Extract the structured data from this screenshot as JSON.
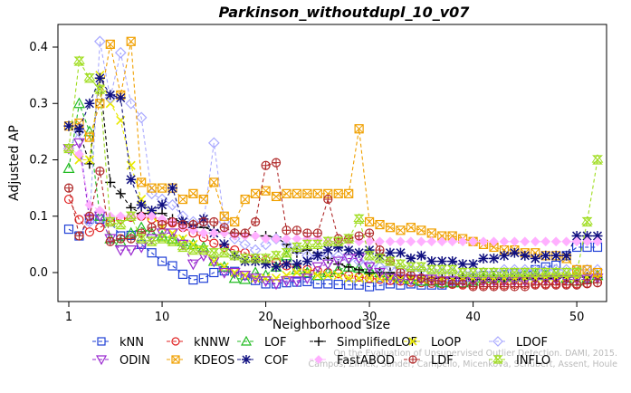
{
  "chart_data": {
    "type": "line",
    "title": "Parkinson_withoutdupl_10_v07",
    "xlabel": "Neighborhood size",
    "ylabel": "Adjusted AP",
    "xlim": [
      1,
      52
    ],
    "ylim": [
      -0.03,
      0.44
    ],
    "xticks": [
      1,
      10,
      20,
      30,
      40,
      50
    ],
    "yticks": [
      0.0,
      0.1,
      0.2,
      0.3,
      0.4
    ],
    "yticklabels": [
      "0.0",
      "0.1",
      "0.2",
      "0.3",
      "0.4"
    ],
    "grid": false,
    "legend_position": "bottom",
    "watermark": "Campos, Zimek, Sander, Campello, Micenkova, Schubert, Assent, Houle\nOn the Evaluation of Unsupervised Outlier Detection. DAMI, 2015.",
    "x": [
      1,
      2,
      3,
      4,
      5,
      6,
      7,
      8,
      9,
      10,
      11,
      12,
      13,
      14,
      15,
      16,
      17,
      18,
      19,
      20,
      21,
      22,
      23,
      24,
      25,
      26,
      27,
      28,
      29,
      30,
      31,
      32,
      33,
      34,
      35,
      36,
      37,
      38,
      39,
      40,
      41,
      42,
      43,
      44,
      45,
      46,
      47,
      48,
      49,
      50,
      51,
      52
    ],
    "series": [
      {
        "name": "kNN",
        "color": "#1f3fd6",
        "marker": "square",
        "values": [
          0.077,
          0.065,
          0.095,
          0.095,
          0.09,
          0.065,
          0.066,
          0.05,
          0.035,
          0.02,
          0.012,
          -0.003,
          -0.013,
          -0.01,
          0.0,
          0.003,
          0.002,
          -0.005,
          -0.014,
          -0.02,
          -0.02,
          -0.018,
          -0.017,
          -0.016,
          -0.02,
          -0.02,
          -0.021,
          -0.022,
          -0.022,
          -0.025,
          -0.023,
          -0.02,
          -0.022,
          -0.02,
          -0.022,
          -0.022,
          -0.022,
          -0.015,
          -0.013,
          -0.01,
          -0.005,
          -0.005,
          -0.004,
          -0.002,
          0.0,
          0.005,
          0.01,
          0.013,
          0.03,
          0.045,
          0.045,
          0.045
        ]
      },
      {
        "name": "kNNW",
        "color": "#e02020",
        "marker": "circle",
        "values": [
          0.13,
          0.094,
          0.072,
          0.08,
          0.09,
          0.095,
          0.098,
          0.1,
          0.095,
          0.09,
          0.088,
          0.08,
          0.07,
          0.062,
          0.052,
          0.045,
          0.04,
          0.035,
          0.025,
          0.022,
          0.018,
          0.012,
          0.008,
          0.005,
          0.003,
          0.0,
          -0.002,
          -0.005,
          -0.008,
          -0.01,
          -0.012,
          -0.014,
          -0.015,
          -0.017,
          -0.018,
          -0.019,
          -0.02,
          -0.021,
          -0.022,
          -0.022,
          -0.022,
          -0.022,
          -0.022,
          -0.021,
          -0.021,
          -0.02,
          -0.02,
          -0.02,
          -0.02,
          -0.02,
          -0.019,
          -0.018
        ]
      },
      {
        "name": "LOF",
        "color": "#22bb22",
        "marker": "triangle-up",
        "values": [
          0.185,
          0.3,
          0.25,
          0.1,
          0.06,
          0.055,
          0.07,
          0.08,
          0.07,
          0.065,
          0.06,
          0.055,
          0.05,
          0.045,
          0.02,
          0.01,
          -0.01,
          -0.012,
          0.0,
          -0.005,
          0.01,
          0.03,
          0.005,
          0.0,
          -0.005,
          0.0,
          0.005,
          0.01,
          0.008,
          0.005,
          0.0,
          -0.005,
          -0.01,
          -0.012,
          -0.015,
          -0.015,
          -0.018,
          -0.018,
          -0.018,
          -0.015,
          -0.01,
          -0.01,
          -0.008,
          -0.008,
          -0.005,
          -0.005,
          -0.005,
          0.0,
          -0.01,
          -0.015,
          -0.01,
          -0.005
        ]
      },
      {
        "name": "SimplifiedLOF",
        "color": "#000000",
        "marker": "plus",
        "values": [
          0.26,
          0.25,
          0.193,
          0.345,
          0.16,
          0.14,
          0.115,
          0.105,
          0.105,
          0.105,
          0.095,
          0.09,
          0.085,
          0.08,
          0.075,
          0.07,
          0.07,
          0.068,
          0.065,
          0.065,
          0.063,
          0.05,
          0.035,
          0.04,
          0.035,
          0.025,
          0.015,
          0.01,
          0.005,
          0.0,
          0.0,
          0.0,
          -0.005,
          -0.005,
          -0.005,
          -0.01,
          -0.01,
          -0.01,
          -0.01,
          -0.012,
          -0.012,
          -0.012,
          -0.012,
          -0.012,
          -0.01,
          -0.01,
          -0.01,
          -0.01,
          -0.008,
          -0.008,
          -0.008,
          -0.008
        ]
      },
      {
        "name": "LoOP",
        "color": "#e8e800",
        "marker": "x",
        "values": [
          0.22,
          0.2,
          0.2,
          0.35,
          0.3,
          0.27,
          0.19,
          0.13,
          0.1,
          0.08,
          0.07,
          0.06,
          0.05,
          0.04,
          0.02,
          0.01,
          0.0,
          -0.005,
          -0.01,
          -0.01,
          -0.01,
          -0.005,
          0.0,
          0.0,
          -0.005,
          -0.005,
          -0.005,
          -0.01,
          -0.01,
          -0.01,
          -0.01,
          -0.01,
          -0.012,
          -0.012,
          -0.012,
          -0.012,
          -0.012,
          -0.012,
          -0.012,
          -0.01,
          -0.01,
          -0.01,
          -0.01,
          -0.01,
          -0.01,
          -0.01,
          -0.008,
          -0.008,
          -0.008,
          -0.008,
          -0.008,
          -0.008
        ]
      },
      {
        "name": "LDOF",
        "color": "#aaaaff",
        "marker": "diamond",
        "values": [
          0.22,
          0.25,
          0.09,
          0.41,
          0.31,
          0.39,
          0.3,
          0.275,
          0.14,
          0.13,
          0.12,
          0.1,
          0.09,
          0.09,
          0.23,
          0.09,
          0.06,
          0.05,
          0.04,
          0.05,
          0.06,
          0.05,
          0.04,
          0.03,
          0.03,
          0.03,
          0.03,
          0.025,
          0.02,
          0.015,
          0.01,
          0.01,
          0.005,
          0.005,
          0.005,
          0.005,
          0.0,
          0.0,
          0.0,
          0.0,
          0.0,
          0.0,
          0.005,
          0.005,
          0.005,
          0.005,
          0.005,
          0.005,
          0.005,
          0.005,
          0.005,
          0.005
        ]
      },
      {
        "name": "ODIN",
        "color": "#9a2ad0",
        "marker": "triangle-down",
        "values": [
          0.22,
          0.23,
          0.095,
          0.1,
          0.06,
          0.04,
          0.04,
          0.045,
          0.06,
          0.07,
          0.07,
          0.05,
          0.015,
          0.03,
          0.02,
          0.0,
          0.0,
          -0.005,
          -0.01,
          -0.015,
          -0.02,
          -0.015,
          -0.015,
          -0.01,
          0.01,
          0.015,
          0.02,
          0.025,
          0.025,
          0.01,
          0.0,
          -0.01,
          -0.012,
          -0.012,
          -0.012,
          -0.012,
          -0.015,
          -0.015,
          -0.015,
          -0.015,
          -0.015,
          -0.015,
          -0.015,
          -0.015,
          -0.015,
          -0.012,
          -0.012,
          -0.012,
          -0.012,
          -0.012,
          -0.012,
          -0.01
        ]
      },
      {
        "name": "KDEOS",
        "color": "#f0a000",
        "marker": "square-x",
        "values": [
          0.26,
          0.265,
          0.24,
          0.3,
          0.405,
          0.315,
          0.41,
          0.16,
          0.15,
          0.15,
          0.15,
          0.13,
          0.14,
          0.13,
          0.16,
          0.1,
          0.09,
          0.13,
          0.14,
          0.145,
          0.135,
          0.14,
          0.14,
          0.14,
          0.14,
          0.14,
          0.14,
          0.14,
          0.255,
          0.09,
          0.085,
          0.08,
          0.075,
          0.08,
          0.075,
          0.07,
          0.065,
          0.065,
          0.06,
          0.055,
          0.05,
          0.045,
          0.04,
          0.04,
          0.035,
          0.035,
          0.03,
          0.03,
          0.025,
          0.005,
          0.005,
          0.0
        ]
      },
      {
        "name": "COF",
        "color": "#101080",
        "marker": "star",
        "values": [
          0.26,
          0.255,
          0.3,
          0.345,
          0.315,
          0.31,
          0.165,
          0.12,
          0.11,
          0.12,
          0.15,
          0.09,
          0.08,
          0.095,
          0.07,
          0.05,
          0.03,
          0.02,
          0.02,
          0.015,
          0.01,
          0.015,
          0.015,
          0.02,
          0.03,
          0.04,
          0.045,
          0.04,
          0.035,
          0.04,
          0.03,
          0.035,
          0.035,
          0.025,
          0.03,
          0.02,
          0.02,
          0.02,
          0.015,
          0.015,
          0.025,
          0.025,
          0.03,
          0.035,
          0.03,
          0.025,
          0.03,
          0.03,
          0.03,
          0.065,
          0.065,
          0.065
        ]
      },
      {
        "name": "FastABOD",
        "color": "#ffb0ff",
        "marker": "diamond-filled",
        "values": [
          0.22,
          0.21,
          0.12,
          0.11,
          0.1,
          0.1,
          0.1,
          0.1,
          0.1,
          0.095,
          0.09,
          0.08,
          0.075,
          0.07,
          0.07,
          0.07,
          0.065,
          0.065,
          0.065,
          0.06,
          0.06,
          0.06,
          0.06,
          0.06,
          0.06,
          0.055,
          0.055,
          0.055,
          0.055,
          0.055,
          0.055,
          0.055,
          0.055,
          0.055,
          0.055,
          0.055,
          0.055,
          0.055,
          0.055,
          0.055,
          0.055,
          0.055,
          0.055,
          0.055,
          0.055,
          0.055,
          0.055,
          0.055,
          0.055,
          0.055,
          0.055,
          0.055
        ]
      },
      {
        "name": "LDF",
        "color": "#b02a2a",
        "marker": "circle-plus",
        "values": [
          0.15,
          0.065,
          0.1,
          0.18,
          0.055,
          0.06,
          0.06,
          0.07,
          0.08,
          0.085,
          0.09,
          0.085,
          0.085,
          0.09,
          0.09,
          0.08,
          0.07,
          0.07,
          0.09,
          0.19,
          0.195,
          0.075,
          0.075,
          0.07,
          0.07,
          0.13,
          0.06,
          0.06,
          0.065,
          0.07,
          0.04,
          0.02,
          0.0,
          -0.005,
          -0.01,
          -0.015,
          -0.015,
          -0.02,
          -0.02,
          -0.025,
          -0.025,
          -0.025,
          -0.025,
          -0.025,
          -0.025,
          -0.022,
          -0.022,
          -0.022,
          -0.022,
          -0.022,
          -0.02,
          -0.018
        ]
      },
      {
        "name": "INFLO",
        "color": "#a0dd20",
        "marker": "hourglass",
        "values": [
          0.22,
          0.375,
          0.345,
          0.325,
          0.09,
          0.085,
          0.1,
          0.06,
          0.055,
          0.06,
          0.055,
          0.045,
          0.04,
          0.04,
          0.035,
          0.035,
          0.03,
          0.025,
          0.025,
          0.025,
          0.03,
          0.035,
          0.045,
          0.05,
          0.05,
          0.055,
          0.055,
          0.06,
          0.095,
          0.03,
          0.025,
          0.02,
          0.015,
          0.01,
          0.01,
          0.005,
          0.005,
          0.005,
          0.0,
          0.0,
          0.0,
          0.0,
          0.0,
          0.0,
          0.0,
          0.0,
          0.0,
          0.0,
          0.0,
          0.0,
          0.09,
          0.2
        ]
      }
    ],
    "legend_rows": [
      [
        "kNN",
        "kNNW",
        "LOF",
        "SimplifiedLOF",
        "LoOP",
        "LDOF"
      ],
      [
        "ODIN",
        "KDEOS",
        "COF",
        "FastABOD",
        "LDF",
        "INFLO"
      ]
    ]
  }
}
